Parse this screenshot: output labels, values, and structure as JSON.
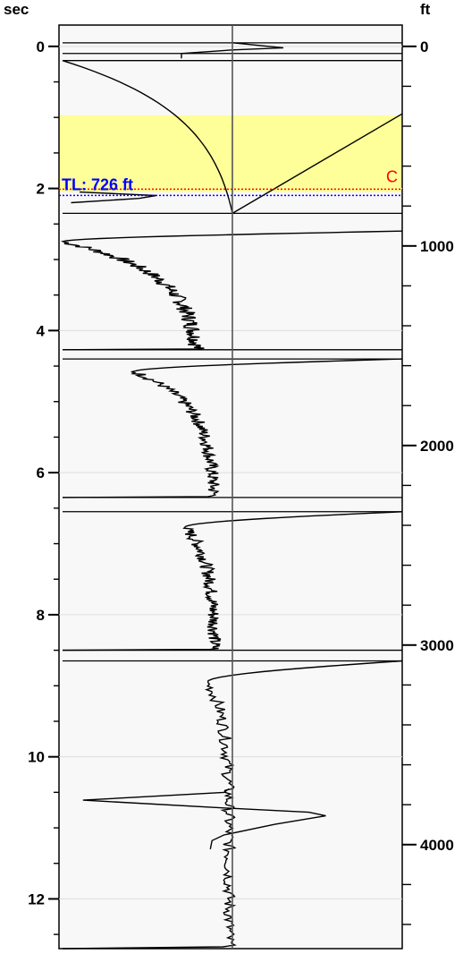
{
  "chart_data": {
    "type": "line",
    "left_axis": {
      "unit": "sec",
      "range": [
        -0.3,
        12.7
      ],
      "tick_labels": [
        "0",
        "2",
        "4",
        "6",
        "8",
        "10",
        "12"
      ],
      "major_ticks": [
        0,
        2,
        4,
        6,
        8,
        10,
        12
      ],
      "minor_step": 0.5
    },
    "right_axis": {
      "unit": "ft",
      "tick_labels": [
        "0",
        "1000",
        "2000",
        "3000",
        "4000"
      ],
      "major_ticks": [
        0,
        1000,
        2000,
        3000,
        4000
      ],
      "minor_step": 200,
      "ft_per_sec": 356
    },
    "grid": true,
    "center_line": true,
    "shaded_zone": {
      "from_sec": 0.97,
      "to_sec": 2.05,
      "color": "#ffff99"
    },
    "marker": {
      "label": "TL: 726 ft",
      "sec": 2.06,
      "side_label": "C",
      "colors": [
        "#ff0000",
        "#0000ff"
      ]
    },
    "trace_color": "#000000",
    "segments": [
      {
        "kind": "feature",
        "t": [
          -0.05,
          0.02,
          0.05,
          0.1,
          0.17
        ],
        "x": [
          0.0,
          0.3,
          0.0,
          -0.3,
          -0.3
        ]
      },
      {
        "kind": "decay",
        "start": 0.2,
        "end": 2.35,
        "x0": -1.0,
        "x1": 0.0,
        "tau": 0.8,
        "ret": 1.0
      },
      {
        "kind": "feature",
        "t": [
          2.05,
          2.1,
          2.14,
          2.2
        ],
        "x": [
          -0.9,
          -0.45,
          -0.55,
          -0.95
        ]
      },
      {
        "kind": "wave",
        "start": 2.6,
        "end": 4.27,
        "min": -1.0,
        "attack": 0.15,
        "a": -0.18,
        "nf": 0.025
      },
      {
        "kind": "wave",
        "start": 4.4,
        "end": 6.35,
        "min": -0.58,
        "attack": 0.18,
        "a": -0.1,
        "nf": 0.02
      },
      {
        "kind": "wave",
        "start": 6.55,
        "end": 8.5,
        "min": -0.28,
        "attack": 0.22,
        "a": -0.1,
        "nf": 0.02
      },
      {
        "kind": "wave",
        "start": 8.65,
        "end": 12.7,
        "min": -0.15,
        "attack": 0.3,
        "a": -0.02,
        "nf": 0.018
      },
      {
        "kind": "feature",
        "t": [
          10.45,
          10.5,
          10.61,
          10.72,
          10.78,
          10.83,
          10.95,
          11.1,
          11.18,
          11.3
        ],
        "x": [
          -0.02,
          -0.05,
          -0.88,
          -0.05,
          0.45,
          0.55,
          0.25,
          -0.05,
          -0.12,
          -0.13
        ]
      }
    ],
    "boundaries": [
      {
        "sec": -0.05,
        "x0": -1.0,
        "x1": 1.0
      },
      {
        "sec": 0.1,
        "x0": -1.0,
        "x1": 1.0
      },
      {
        "sec": 0.2,
        "x0": -1.0,
        "x1": 1.0
      },
      {
        "sec": 2.35,
        "x0": -1.0,
        "x1": 1.0
      },
      {
        "sec": 4.27,
        "x0": -1.0,
        "x1": 1.0
      },
      {
        "sec": 4.4,
        "x0": -1.0,
        "x1": 1.0
      },
      {
        "sec": 6.35,
        "x0": -1.0,
        "x1": 1.0
      },
      {
        "sec": 6.55,
        "x0": -1.0,
        "x1": 1.0
      },
      {
        "sec": 8.5,
        "x0": -1.0,
        "x1": 1.0
      },
      {
        "sec": 8.65,
        "x0": -1.0,
        "x1": 1.0
      }
    ]
  }
}
